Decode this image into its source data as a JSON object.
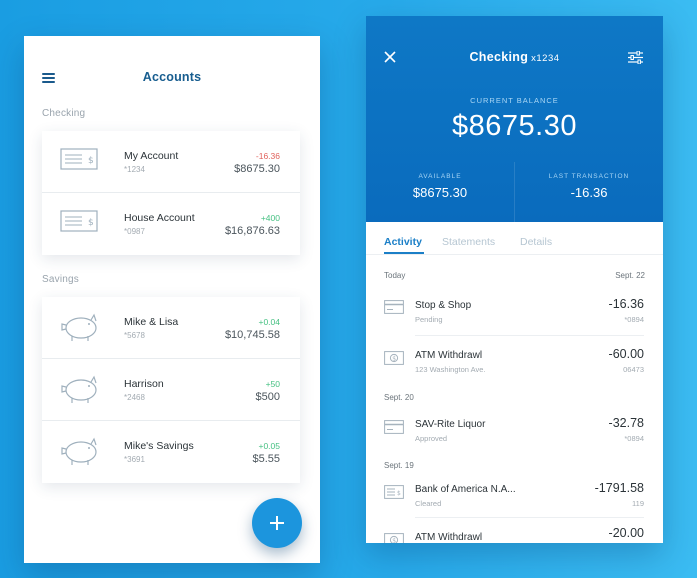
{
  "left": {
    "title": "Accounts",
    "checking_label": "Checking",
    "savings_label": "Savings",
    "checking": [
      {
        "name": "My Account",
        "number": "*1234",
        "change": "-16.36",
        "balance": "$8675.30"
      },
      {
        "name": "House Account",
        "number": "*0987",
        "change": "+400",
        "balance": "$16,876.63"
      }
    ],
    "savings": [
      {
        "name": "Mike & Lisa",
        "number": "*5678",
        "change": "+0.04",
        "balance": "$10,745.58"
      },
      {
        "name": "Harrison",
        "number": "*2468",
        "change": "+50",
        "balance": "$500"
      },
      {
        "name": "Mike's Savings",
        "number": "*3691",
        "change": "+0.05",
        "balance": "$5.55"
      }
    ],
    "fab_icon": "plus-icon"
  },
  "right": {
    "title": "Checking",
    "title_number": "x1234",
    "current_balance_label": "CURRENT BALANCE",
    "current_balance": "$8675.30",
    "available_label": "AVAILABLE",
    "available": "$8675.30",
    "last_txn_label": "LAST TRANSACTION",
    "last_txn": "-16.36",
    "tabs": [
      "Activity",
      "Statements",
      "Details"
    ],
    "groups": [
      {
        "day": "Today",
        "date": "Sept. 22",
        "items": [
          {
            "icon": "card-icon",
            "name": "Stop & Shop",
            "sub": "Pending",
            "amount": "-16.36",
            "ref": "*0894"
          },
          {
            "icon": "cash-icon",
            "name": "ATM Withdrawl",
            "sub": "123 Washington Ave.",
            "amount": "-60.00",
            "ref": "06473"
          }
        ]
      },
      {
        "day": "Sept. 20",
        "items": [
          {
            "icon": "card-icon",
            "name": "SAV-Rite Liquor",
            "sub": "Approved",
            "amount": "-32.78",
            "ref": "*0894"
          }
        ]
      },
      {
        "day": "Sept. 19",
        "items": [
          {
            "icon": "check-icon",
            "name": "Bank of America N.A...",
            "sub": "Cleared",
            "amount": "-1791.58",
            "ref": "119"
          },
          {
            "icon": "cash-icon",
            "name": "ATM Withdrawl",
            "sub": "",
            "amount": "-20.00",
            "ref": ""
          }
        ]
      }
    ]
  },
  "colors": {
    "background": "#27aaea",
    "header_blue": "#0c72c2",
    "accent": "#1b7fc7",
    "negative": "#e0625c",
    "positive": "#47c183"
  }
}
